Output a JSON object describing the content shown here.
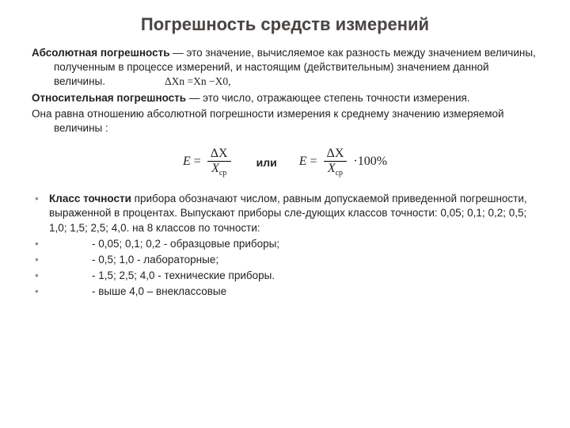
{
  "title": "Погрешность средств   измерений",
  "p1_lead": "Абсолютная погрешность",
  "p1_rest": " — это значение, вычисляемое как разность между значением величины, полученным в процессе измерений, и настоящим (действительным) значением данной величины.",
  "p1_formula": "ΔХn =Хn −Х0,",
  "p2_lead": "Относительная погрешность",
  "p2_rest": " — это число, отражающее степень точности измерения.",
  "p3": "Она равна отношению абсолютной погрешности измерения к среднему значению измеряемой величины :",
  "formula": {
    "E": "E",
    "eq": "=",
    "dx": "ΔX",
    "xcp": "X",
    "cp": "ср",
    "ili": "или",
    "tail": "·100%"
  },
  "bul1_lead": "Класс точности",
  "bul1_rest": " прибора обозначают числом, равным допускаемой приведенной погрешности, выраженной в процентах. Выпускают приборы сле-дующих классов точности: 0,05; 0,1; 0,2; 0,5; 1,0; 1,5; 2,5; 4,0. на 8 классов по точности:",
  "sub1": "-  0,05; 0,1; 0,2 - образцовые приборы;",
  "sub2": "-  0,5; 1,0 - лабораторные;",
  "sub3": "-  1,5; 2,5; 4,0 - технические приборы.",
  "sub4": "-  выше 4,0 – внеклассовые",
  "colors": {
    "title": "#4a4644",
    "text": "#222222",
    "bullet_dot": "#9b8f87",
    "background": "#ffffff"
  },
  "fontsize": {
    "title": 22,
    "body": 13.5,
    "formula": 16
  }
}
